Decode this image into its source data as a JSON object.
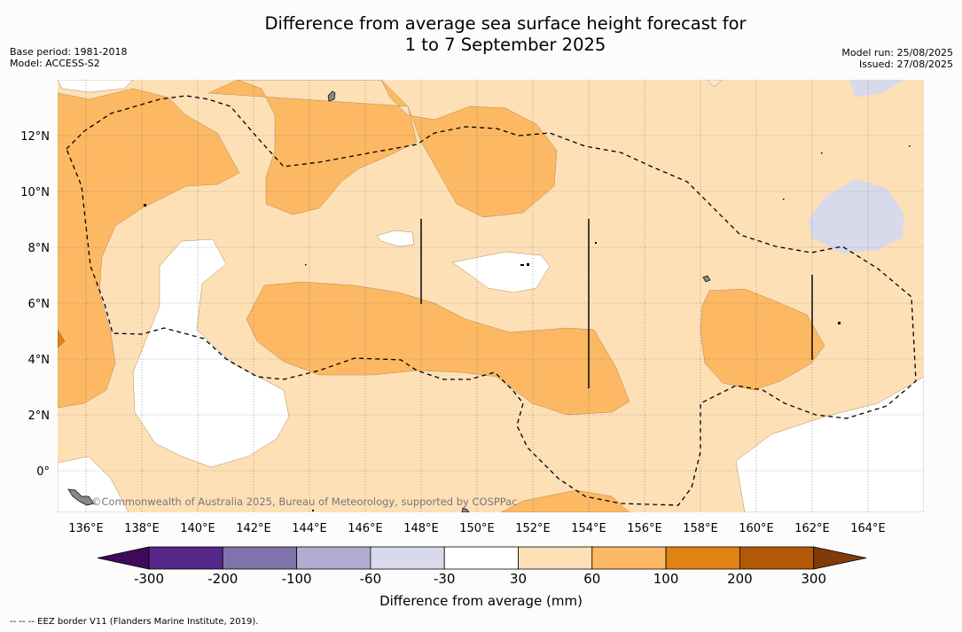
{
  "title": {
    "line1": "Difference from average sea surface height forecast for",
    "line2": "1 to 7 September 2025"
  },
  "meta_left": {
    "base_period": "Base period: 1981-2018",
    "model": "Model: ACCESS-S2"
  },
  "meta_right": {
    "model_run": "Model run: 25/08/2025",
    "issued": "Issued: 27/08/2025"
  },
  "credit": "©Commonwealth of Australia 2025, Bureau of Meteorology, supported by COSPPac",
  "footnote": "--  --  -- EEZ border V11 (Flanders Marine Institute, 2019).",
  "chart_data": {
    "type": "heatmap",
    "title": "Difference from average sea surface height forecast for 1 to 7 September 2025",
    "x_ticks": [
      "136°E",
      "138°E",
      "140°E",
      "142°E",
      "144°E",
      "146°E",
      "148°E",
      "150°E",
      "152°E",
      "154°E",
      "156°E",
      "158°E",
      "160°E",
      "162°E",
      "164°E"
    ],
    "x_tick_values": [
      136,
      138,
      140,
      142,
      144,
      146,
      148,
      150,
      152,
      154,
      156,
      158,
      160,
      162,
      164
    ],
    "y_ticks": [
      "0°",
      "2°N",
      "4°N",
      "6°N",
      "8°N",
      "10°N",
      "12°N"
    ],
    "y_tick_values": [
      0,
      2,
      4,
      6,
      8,
      10,
      12
    ],
    "xlim": [
      135,
      166
    ],
    "ylim": [
      -1.5,
      14
    ],
    "colorbar": {
      "label": "Difference from average (mm)",
      "tick_labels": [
        "-300",
        "-200",
        "-100",
        "-60",
        "-30",
        "30",
        "60",
        "100",
        "200",
        "300"
      ],
      "colors": [
        "#3f0a5a",
        "#542788",
        "#8073ac",
        "#b2abd2",
        "#d8daeb",
        "#ffffff",
        "#fee0b6",
        "#fdb863",
        "#e08214",
        "#b35806",
        "#7f3b08"
      ]
    },
    "vertical_bars_lon": [
      148,
      154,
      162
    ],
    "legend": "EEZ border V11 (Flanders Marine Institute, 2019)"
  }
}
